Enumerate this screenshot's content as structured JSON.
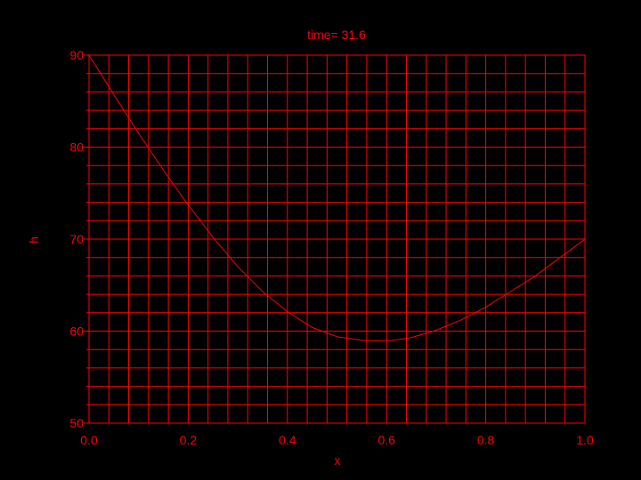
{
  "colors": {
    "background": "#000000",
    "foreground": "#ff0000"
  },
  "chart_data": {
    "type": "line",
    "title": "time= 31.6",
    "xlabel": "x",
    "ylabel": "h",
    "xlim": [
      0.0,
      1.0
    ],
    "ylim": [
      50,
      90
    ],
    "grid": true,
    "x_ticks": [
      "0.0",
      "0.2",
      "0.4",
      "0.6",
      "0.8",
      "1.0"
    ],
    "y_ticks": [
      "50",
      "60",
      "70",
      "80",
      "90"
    ],
    "series": [
      {
        "x": [
          0.0,
          0.05,
          0.1,
          0.15,
          0.2,
          0.25,
          0.3,
          0.35,
          0.4,
          0.45,
          0.5,
          0.55,
          0.6,
          0.65,
          0.7,
          0.75,
          0.8,
          0.85,
          0.9,
          0.95,
          1.0
        ],
        "y": [
          90.0,
          85.7,
          81.5,
          77.5,
          73.7,
          70.2,
          67.0,
          64.3,
          62.1,
          60.4,
          59.4,
          59.0,
          58.9,
          59.3,
          60.1,
          61.2,
          62.6,
          64.3,
          66.0,
          68.0,
          70.0
        ]
      }
    ]
  }
}
